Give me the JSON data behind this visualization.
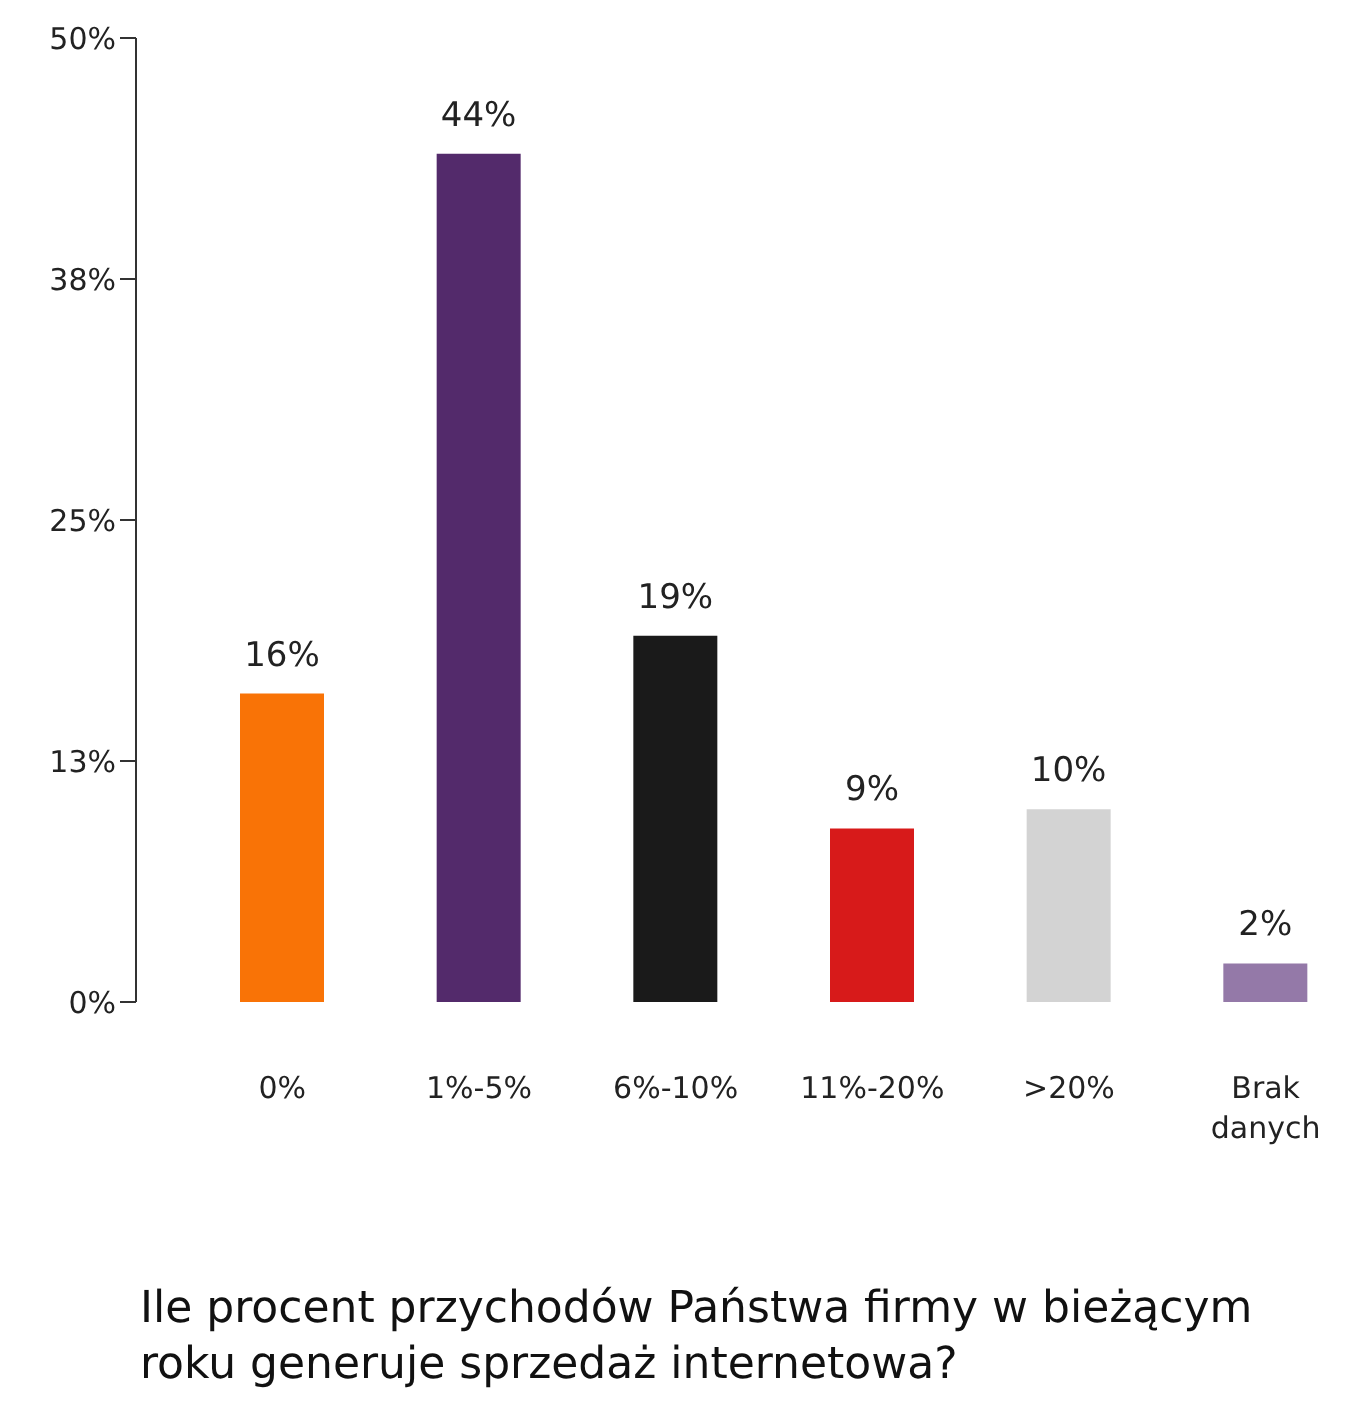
{
  "chart_data": {
    "type": "bar",
    "title": "Ile procent przychodów Państwa firmy w bieżącym roku generuje sprzedaż internetowa?",
    "categories": [
      "0%",
      "1%-5%",
      "6%-10%",
      "11%-20%",
      ">20%",
      "Brak danych"
    ],
    "values": [
      16,
      44,
      19,
      9,
      10,
      2
    ],
    "colors": [
      "#f97306",
      "#532a6b",
      "#1a1a1a",
      "#d71a1a",
      "#d3d3d3",
      "#9479a8"
    ],
    "value_labels": [
      "16%",
      "44%",
      "19%",
      "9%",
      "10%",
      "2%"
    ],
    "ylim": [
      0,
      50
    ],
    "yticks": [
      {
        "value": 0,
        "label": "0%"
      },
      {
        "value": 12.5,
        "label": "13%"
      },
      {
        "value": 25,
        "label": "25%"
      },
      {
        "value": 37.5,
        "label": "38%"
      },
      {
        "value": 50,
        "label": "50%"
      }
    ],
    "grid": false,
    "legend": false
  }
}
